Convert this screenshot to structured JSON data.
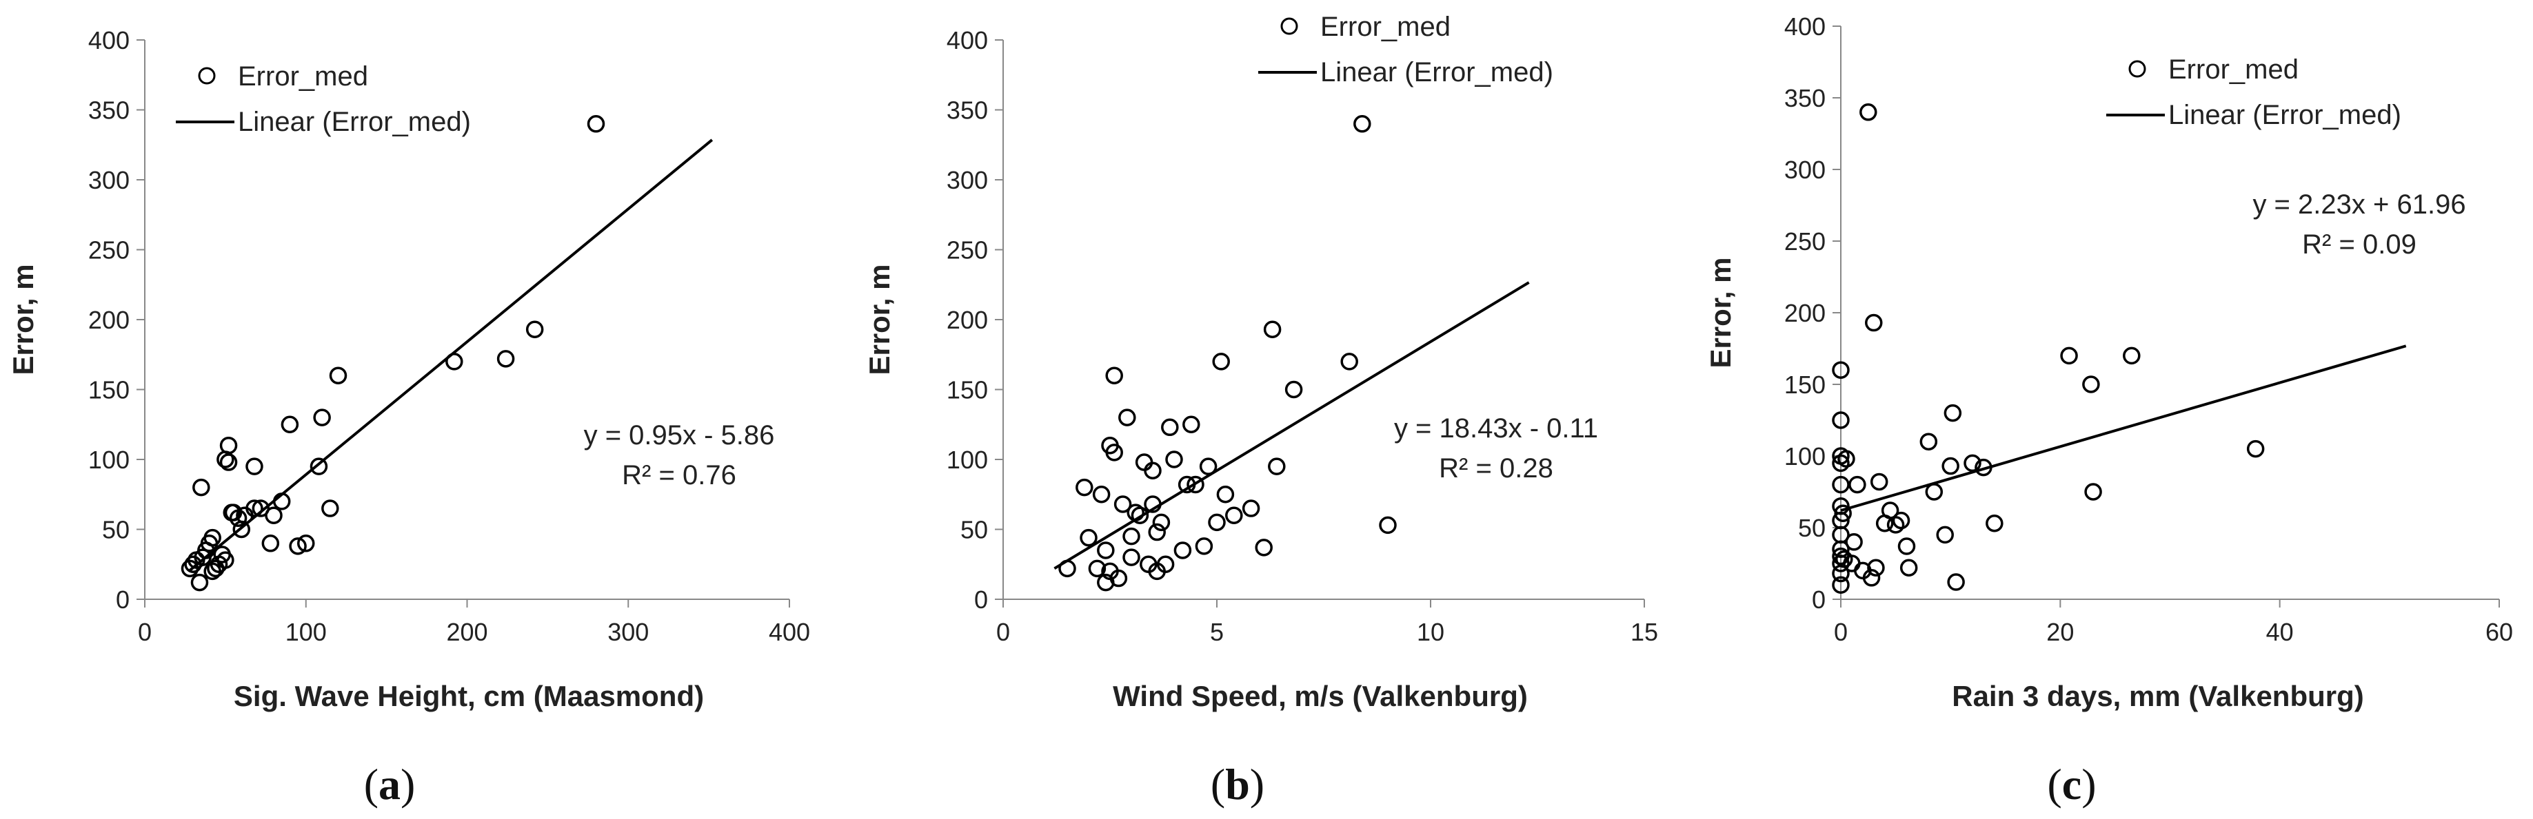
{
  "chart_data": [
    {
      "type": "scatter",
      "panel_label": "a",
      "xlabel": "Sig. Wave Height, cm (Maasmond)",
      "ylabel": "Error, m",
      "xlim": [
        0,
        400
      ],
      "ylim": [
        0,
        400
      ],
      "xticks": [
        0,
        100,
        200,
        300,
        400
      ],
      "yticks": [
        0,
        50,
        100,
        150,
        200,
        250,
        300,
        350,
        400
      ],
      "grid": false,
      "legend": {
        "placement": "top-left",
        "marker_label": "Error_med",
        "line_label": "Linear (Error_med)"
      },
      "equation": "y = 0.95x - 5.86",
      "r_squared": "R² = 0.76",
      "trendline": {
        "slope": 0.95,
        "intercept": -5.86,
        "x_range": [
          28,
          352
        ]
      },
      "series": [
        {
          "name": "Error_med",
          "x": [
            28,
            30,
            32,
            34,
            36,
            38,
            40,
            42,
            44,
            46,
            48,
            50,
            52,
            54,
            58,
            60,
            62,
            68,
            72,
            78,
            80,
            85,
            90,
            95,
            100,
            108,
            110,
            115,
            120,
            192,
            224,
            242,
            280,
            42,
            35,
            50,
            52,
            55,
            68
          ],
          "y": [
            22,
            25,
            28,
            12,
            30,
            35,
            40,
            20,
            22,
            25,
            32,
            100,
            110,
            62,
            58,
            50,
            60,
            95,
            65,
            40,
            60,
            70,
            125,
            38,
            40,
            95,
            130,
            65,
            160,
            170,
            172,
            193,
            340,
            44,
            80,
            28,
            98,
            62,
            65
          ]
        }
      ]
    },
    {
      "type": "scatter",
      "panel_label": "b",
      "xlabel": "Wind Speed, m/s (Valkenburg)",
      "ylabel": "Error, m",
      "xlim": [
        0,
        15
      ],
      "ylim": [
        0,
        400
      ],
      "xticks": [
        0,
        5,
        10,
        15
      ],
      "yticks": [
        0,
        50,
        100,
        150,
        200,
        250,
        300,
        350,
        400
      ],
      "grid": false,
      "legend": {
        "placement": "top-left",
        "marker_label": "Error_med",
        "line_label": "Linear (Error_med)"
      },
      "equation": "y = 18.43x - 0.11",
      "r_squared": "R² = 0.28",
      "trendline": {
        "slope": 18.43,
        "intercept": -0.11,
        "x_range": [
          1.2,
          12.3
        ]
      },
      "series": [
        {
          "name": "Error_med",
          "x": [
            1.5,
            1.9,
            2.0,
            2.2,
            2.3,
            2.4,
            2.5,
            2.5,
            2.6,
            2.6,
            2.7,
            2.8,
            2.9,
            3.0,
            3.0,
            3.1,
            3.2,
            3.3,
            3.4,
            3.5,
            3.6,
            3.6,
            3.7,
            3.8,
            3.9,
            4.0,
            4.2,
            4.3,
            4.4,
            4.7,
            4.8,
            5.0,
            5.1,
            5.2,
            5.4,
            5.8,
            6.1,
            6.3,
            6.4,
            6.8,
            8.1,
            8.4,
            9.0,
            2.4,
            3.5,
            4.5
          ],
          "y": [
            22,
            80,
            44,
            22,
            75,
            35,
            110,
            20,
            105,
            160,
            15,
            68,
            130,
            45,
            30,
            62,
            60,
            98,
            25,
            92,
            48,
            20,
            55,
            25,
            123,
            100,
            35,
            82,
            125,
            38,
            95,
            55,
            170,
            75,
            60,
            65,
            37,
            193,
            95,
            150,
            170,
            340,
            53,
            12,
            68,
            82
          ]
        }
      ]
    },
    {
      "type": "scatter",
      "panel_label": "c",
      "xlabel": "Rain 3 days, mm (Valkenburg)",
      "ylabel": "Error, m",
      "xlim": [
        0,
        60
      ],
      "ylim": [
        0,
        400
      ],
      "xticks": [
        0,
        20,
        40,
        60
      ],
      "yticks": [
        0,
        50,
        100,
        150,
        200,
        250,
        300,
        350,
        400
      ],
      "grid": false,
      "legend": {
        "placement": "top-right",
        "marker_label": "Error_med",
        "line_label": "Linear (Error_med)"
      },
      "equation": "y = 2.23x + 61.96",
      "r_squared": "R² = 0.09",
      "trendline": {
        "slope": 2.23,
        "intercept": 61.96,
        "x_range": [
          0,
          51.5
        ]
      },
      "series": [
        {
          "name": "Error_med",
          "x": [
            0,
            0,
            0,
            0,
            0,
            0,
            0,
            0,
            0,
            0,
            0,
            0,
            0,
            0.2,
            0.3,
            0.5,
            1.0,
            1.2,
            1.5,
            2.0,
            2.5,
            2.8,
            3.0,
            3.2,
            3.5,
            4.0,
            4.5,
            5.0,
            5.5,
            6.0,
            6.2,
            8.0,
            8.5,
            9.5,
            10.0,
            10.2,
            10.5,
            12.0,
            13.0,
            14.0,
            20.8,
            22.8,
            23.0,
            26.5,
            37.8
          ],
          "y": [
            10,
            18,
            25,
            30,
            35,
            45,
            55,
            65,
            80,
            95,
            100,
            125,
            160,
            60,
            28,
            98,
            25,
            40,
            80,
            20,
            340,
            15,
            193,
            22,
            82,
            53,
            62,
            52,
            55,
            37,
            22,
            110,
            75,
            45,
            93,
            130,
            12,
            95,
            92,
            53,
            170,
            150,
            75,
            170,
            105
          ]
        }
      ]
    }
  ]
}
